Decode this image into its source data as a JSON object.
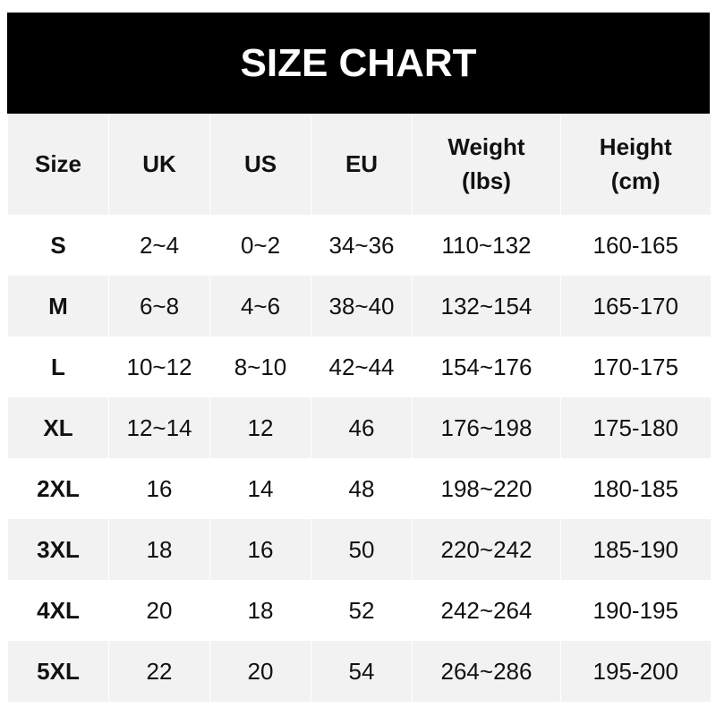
{
  "title": "SIZE CHART",
  "headers": [
    "Size",
    "UK",
    "US",
    "EU",
    "Weight\n(lbs)",
    "Height\n(cm)"
  ],
  "header_lines": [
    [
      "Size"
    ],
    [
      "UK"
    ],
    [
      "US"
    ],
    [
      "EU"
    ],
    [
      "Weight",
      "(lbs)"
    ],
    [
      "Height",
      "(cm)"
    ]
  ],
  "rows": [
    [
      "S",
      "2~4",
      "0~2",
      "34~36",
      "110~132",
      "160-165"
    ],
    [
      "M",
      "6~8",
      "4~6",
      "38~40",
      "132~154",
      "165-170"
    ],
    [
      "L",
      "10~12",
      "8~10",
      "42~44",
      "154~176",
      "170-175"
    ],
    [
      "XL",
      "12~14",
      "12",
      "46",
      "176~198",
      "175-180"
    ],
    [
      "2XL",
      "16",
      "14",
      "48",
      "198~220",
      "180-185"
    ],
    [
      "3XL",
      "18",
      "16",
      "50",
      "220~242",
      "185-190"
    ],
    [
      "4XL",
      "20",
      "18",
      "52",
      "242~264",
      "190-195"
    ],
    [
      "5XL",
      "22",
      "20",
      "54",
      "264~286",
      "195-200"
    ]
  ],
  "colors": {
    "header_bg": "#000000",
    "row_alt": "#f2f2f2"
  }
}
